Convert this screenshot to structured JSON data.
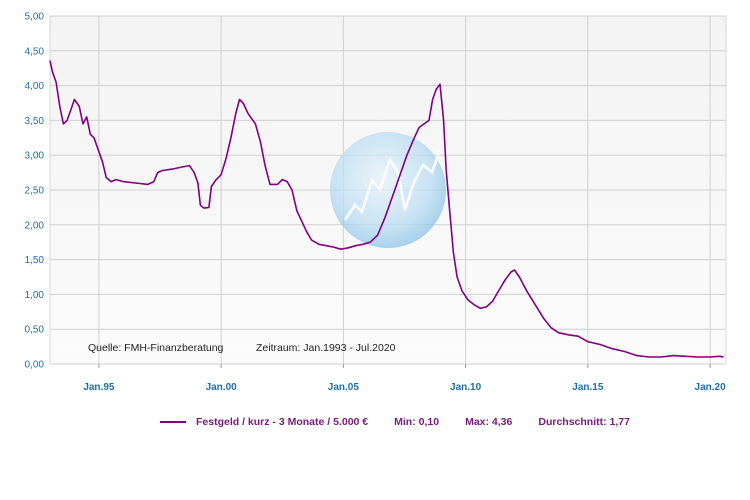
{
  "chart_data": {
    "type": "line",
    "title": "",
    "xlabel": "",
    "ylabel": "",
    "ylim": [
      0,
      5
    ],
    "y_ticks": [
      "0,00",
      "0,50",
      "1,00",
      "1,50",
      "2,00",
      "2,50",
      "3,00",
      "3,50",
      "4,00",
      "4,50",
      "5,00"
    ],
    "x_ticks": [
      "Jan.95",
      "Jan.00",
      "Jan.05",
      "Jan.10",
      "Jan.15",
      "Jan.20"
    ],
    "x_tick_years": [
      1995,
      2000,
      2005,
      2010,
      2015,
      2020
    ],
    "grid": true,
    "source_text": "Quelle: FMH-Finanzberatung",
    "period_text": "Zeitraum: Jan.1993 - Jul.2020",
    "series": [
      {
        "name": "Festgeld / kurz - 3 Monate / 5.000 €",
        "color": "#800080",
        "points": [
          [
            1993.0,
            4.36
          ],
          [
            1993.1,
            4.2
          ],
          [
            1993.25,
            4.05
          ],
          [
            1993.4,
            3.7
          ],
          [
            1993.55,
            3.45
          ],
          [
            1993.7,
            3.5
          ],
          [
            1993.85,
            3.65
          ],
          [
            1994.0,
            3.8
          ],
          [
            1994.2,
            3.7
          ],
          [
            1994.35,
            3.45
          ],
          [
            1994.5,
            3.55
          ],
          [
            1994.65,
            3.3
          ],
          [
            1994.8,
            3.25
          ],
          [
            1995.0,
            3.05
          ],
          [
            1995.15,
            2.9
          ],
          [
            1995.3,
            2.68
          ],
          [
            1995.5,
            2.62
          ],
          [
            1995.7,
            2.65
          ],
          [
            1996.0,
            2.62
          ],
          [
            1996.5,
            2.6
          ],
          [
            1997.0,
            2.58
          ],
          [
            1997.25,
            2.62
          ],
          [
            1997.4,
            2.75
          ],
          [
            1997.6,
            2.78
          ],
          [
            1998.0,
            2.8
          ],
          [
            1998.4,
            2.83
          ],
          [
            1998.7,
            2.85
          ],
          [
            1998.9,
            2.75
          ],
          [
            1999.05,
            2.6
          ],
          [
            1999.15,
            2.28
          ],
          [
            1999.3,
            2.24
          ],
          [
            1999.5,
            2.25
          ],
          [
            1999.6,
            2.55
          ],
          [
            1999.8,
            2.65
          ],
          [
            2000.0,
            2.72
          ],
          [
            2000.2,
            2.95
          ],
          [
            2000.4,
            3.25
          ],
          [
            2000.6,
            3.6
          ],
          [
            2000.75,
            3.8
          ],
          [
            2000.9,
            3.75
          ],
          [
            2001.1,
            3.6
          ],
          [
            2001.4,
            3.45
          ],
          [
            2001.6,
            3.2
          ],
          [
            2001.8,
            2.85
          ],
          [
            2002.0,
            2.58
          ],
          [
            2002.3,
            2.58
          ],
          [
            2002.5,
            2.65
          ],
          [
            2002.7,
            2.62
          ],
          [
            2002.9,
            2.5
          ],
          [
            2003.1,
            2.2
          ],
          [
            2003.3,
            2.05
          ],
          [
            2003.5,
            1.9
          ],
          [
            2003.7,
            1.78
          ],
          [
            2004.0,
            1.72
          ],
          [
            2004.3,
            1.7
          ],
          [
            2004.6,
            1.68
          ],
          [
            2004.9,
            1.65
          ],
          [
            2005.2,
            1.67
          ],
          [
            2005.5,
            1.7
          ],
          [
            2005.8,
            1.72
          ],
          [
            2006.1,
            1.75
          ],
          [
            2006.4,
            1.85
          ],
          [
            2006.7,
            2.1
          ],
          [
            2007.0,
            2.4
          ],
          [
            2007.3,
            2.7
          ],
          [
            2007.6,
            3.0
          ],
          [
            2007.9,
            3.25
          ],
          [
            2008.1,
            3.4
          ],
          [
            2008.3,
            3.45
          ],
          [
            2008.5,
            3.5
          ],
          [
            2008.65,
            3.8
          ],
          [
            2008.8,
            3.95
          ],
          [
            2008.95,
            4.02
          ],
          [
            2009.1,
            3.5
          ],
          [
            2009.2,
            2.8
          ],
          [
            2009.35,
            2.2
          ],
          [
            2009.5,
            1.6
          ],
          [
            2009.65,
            1.25
          ],
          [
            2009.85,
            1.05
          ],
          [
            2010.1,
            0.92
          ],
          [
            2010.35,
            0.85
          ],
          [
            2010.6,
            0.8
          ],
          [
            2010.85,
            0.82
          ],
          [
            2011.1,
            0.9
          ],
          [
            2011.35,
            1.05
          ],
          [
            2011.6,
            1.2
          ],
          [
            2011.85,
            1.32
          ],
          [
            2012.0,
            1.35
          ],
          [
            2012.2,
            1.25
          ],
          [
            2012.5,
            1.05
          ],
          [
            2012.85,
            0.85
          ],
          [
            2013.2,
            0.65
          ],
          [
            2013.5,
            0.52
          ],
          [
            2013.8,
            0.45
          ],
          [
            2014.2,
            0.42
          ],
          [
            2014.6,
            0.4
          ],
          [
            2015.0,
            0.32
          ],
          [
            2015.5,
            0.28
          ],
          [
            2016.0,
            0.22
          ],
          [
            2016.5,
            0.18
          ],
          [
            2017.0,
            0.12
          ],
          [
            2017.5,
            0.1
          ],
          [
            2018.0,
            0.1
          ],
          [
            2018.5,
            0.12
          ],
          [
            2019.0,
            0.11
          ],
          [
            2019.5,
            0.1
          ],
          [
            2020.0,
            0.1
          ],
          [
            2020.4,
            0.11
          ],
          [
            2020.55,
            0.1
          ]
        ]
      }
    ]
  },
  "legend": {
    "label": "Festgeld / kurz - 3 Monate / 5.000 €",
    "min": "Min: 0,10",
    "max": "Max: 4,36",
    "avg": "Durchschnitt: 1,77"
  }
}
